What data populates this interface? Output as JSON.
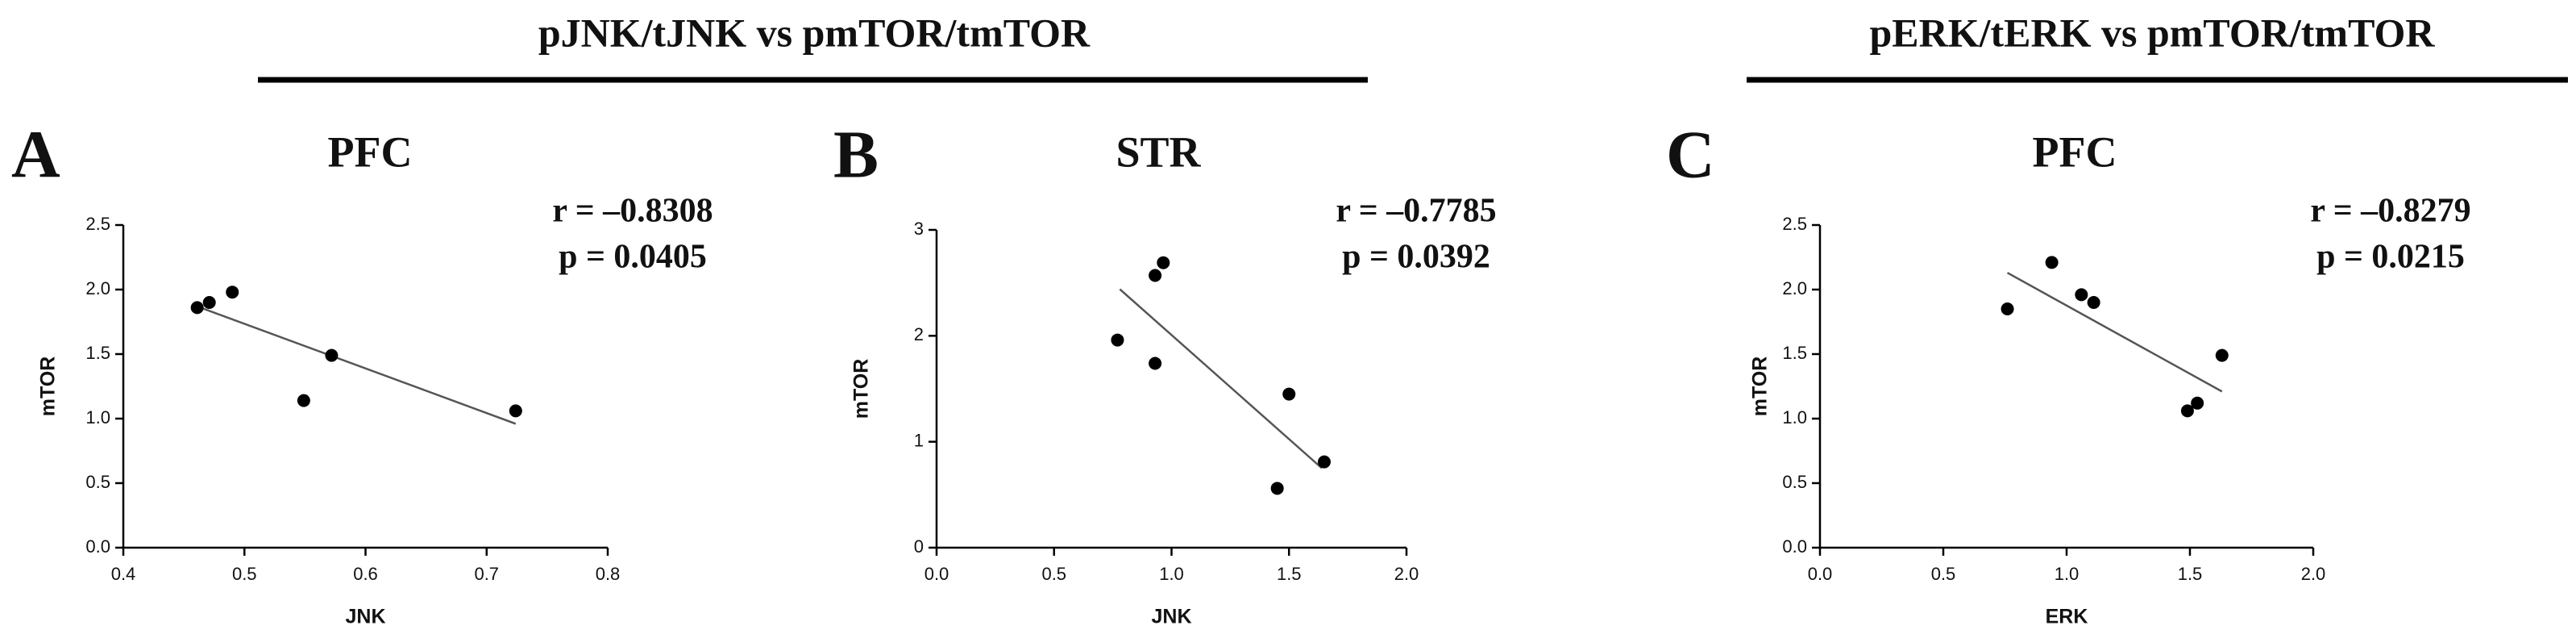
{
  "headers": [
    "pJNK/tJNK vs pmTOR/tmTOR",
    "pERK/tERK vs pmTOR/tmTOR"
  ],
  "chart_data": [
    {
      "type": "scatter",
      "panel": "A",
      "title": "PFC",
      "annotations": [
        "r = –0.8308",
        "p = 0.0405"
      ],
      "xlabel": "JNK",
      "ylabel": "mTOR",
      "color": "#000000",
      "line_color": "#555555",
      "x": [
        0.461,
        0.471,
        0.49,
        0.549,
        0.572,
        0.724
      ],
      "y": [
        1.86,
        1.9,
        1.98,
        1.14,
        1.49,
        1.06
      ],
      "fit_line": {
        "x": [
          0.458,
          0.724
        ],
        "y": [
          1.88,
          0.96
        ]
      },
      "xlim": [
        0.4,
        0.8
      ],
      "xticks": [
        0.4,
        0.5,
        0.6,
        0.7,
        0.8
      ],
      "ylim": [
        0,
        2.5
      ],
      "yticks": [
        {
          "value": 0,
          "label": "0.0"
        },
        0.5,
        {
          "value": 1,
          "label": "1.0"
        },
        1.5,
        {
          "value": 2,
          "label": "2.0"
        },
        2.5
      ]
    },
    {
      "type": "scatter",
      "panel": "B",
      "title": "STR",
      "annotations": [
        "r = –0.7785",
        "p = 0.0392"
      ],
      "xlabel": "JNK",
      "ylabel": "mTOR",
      "color": "#000000",
      "line_color": "#555555",
      "x": [
        0.77,
        0.93,
        0.965,
        0.93,
        1.5,
        1.45,
        1.65
      ],
      "y": [
        1.96,
        2.57,
        2.69,
        1.74,
        1.45,
        0.56,
        0.81
      ],
      "fit_line": {
        "x": [
          0.78,
          1.64
        ],
        "y": [
          2.44,
          0.75
        ]
      },
      "xlim": [
        0,
        2
      ],
      "xticks": [
        {
          "value": 0,
          "label": "0.0"
        },
        0.5,
        {
          "value": 1,
          "label": "1.0"
        },
        1.5,
        {
          "value": 2,
          "label": "2.0"
        }
      ],
      "ylim": [
        0,
        3
      ],
      "yticks": [
        0,
        1,
        2,
        3
      ]
    },
    {
      "type": "scatter",
      "panel": "C",
      "title": "PFC",
      "annotations": [
        "r = –0.8279",
        "p = 0.0215"
      ],
      "xlabel": "ERK",
      "ylabel": "mTOR",
      "color": "#000000",
      "line_color": "#555555",
      "x": [
        0.76,
        0.94,
        1.06,
        1.11,
        1.49,
        1.53,
        1.63
      ],
      "y": [
        1.85,
        2.21,
        1.96,
        1.9,
        1.06,
        1.12,
        1.49
      ],
      "fit_line": {
        "x": [
          0.76,
          1.63
        ],
        "y": [
          2.13,
          1.21
        ]
      },
      "xlim": [
        0,
        2
      ],
      "xticks": [
        {
          "value": 0,
          "label": "0.0"
        },
        0.5,
        {
          "value": 1,
          "label": "1.0"
        },
        1.5,
        {
          "value": 2,
          "label": "2.0"
        }
      ],
      "ylim": [
        0,
        2.5
      ],
      "yticks": [
        {
          "value": 0,
          "label": "0.0"
        },
        0.5,
        {
          "value": 1,
          "label": "1.0"
        },
        1.5,
        {
          "value": 2,
          "label": "2.0"
        },
        2.5
      ]
    }
  ]
}
